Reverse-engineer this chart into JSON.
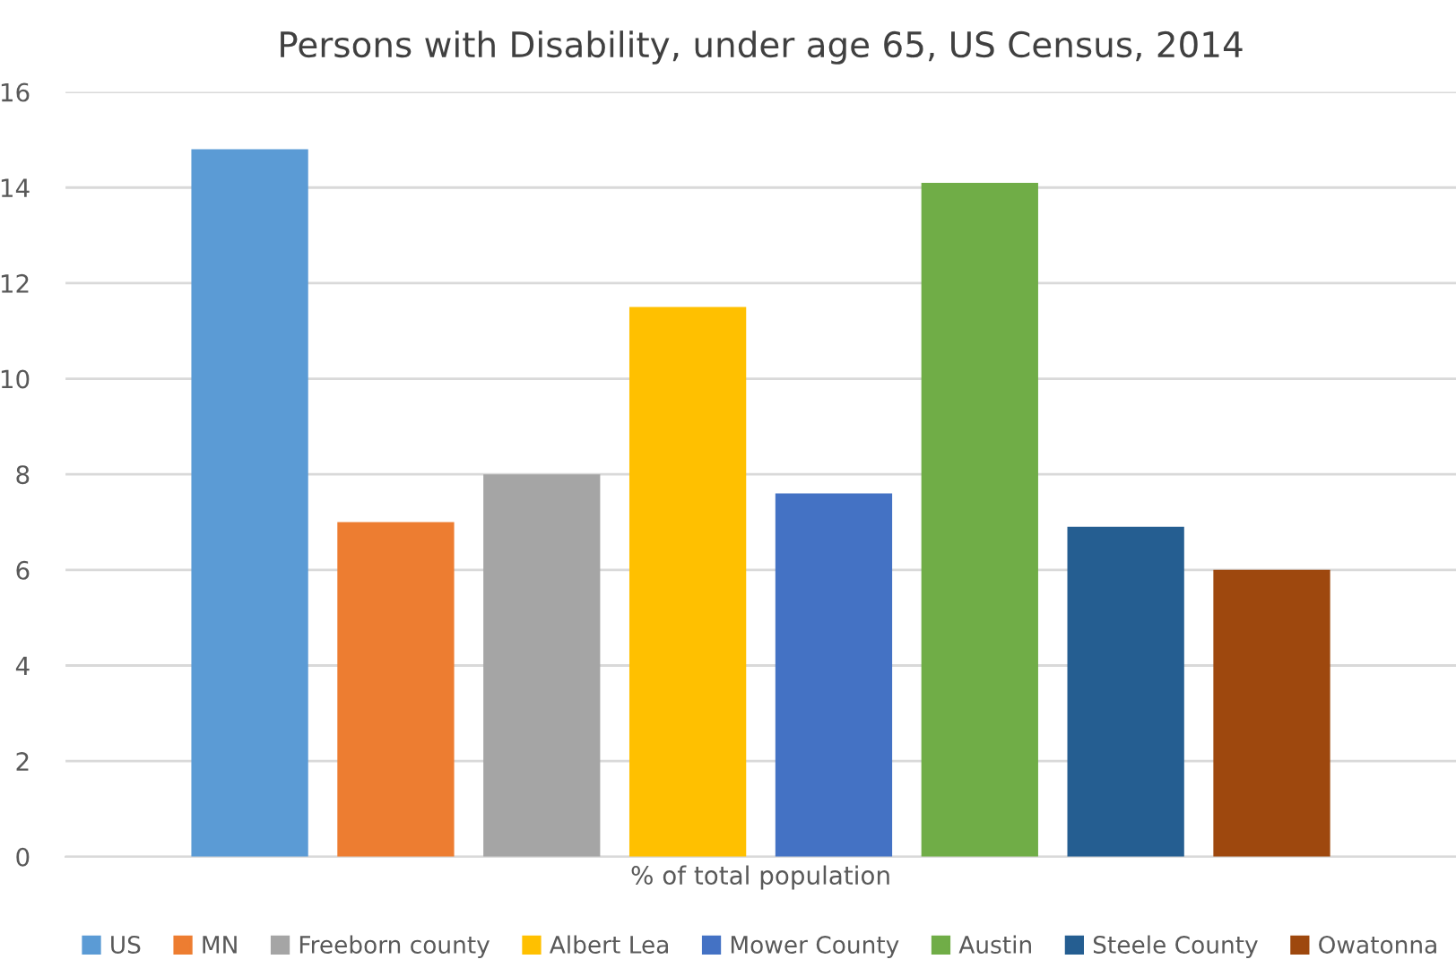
{
  "chart_data": {
    "type": "bar",
    "title": "Persons with Disability, under age 65, US Census, 2014",
    "categories": [
      "% of total population"
    ],
    "series": [
      {
        "name": "US",
        "color": "#5b9bd5",
        "values": [
          14.8
        ]
      },
      {
        "name": "MN",
        "color": "#ed7d31",
        "values": [
          7.0
        ]
      },
      {
        "name": "Freeborn county",
        "color": "#a5a5a5",
        "values": [
          8.0
        ]
      },
      {
        "name": "Albert Lea",
        "color": "#ffc000",
        "values": [
          11.5
        ]
      },
      {
        "name": "Mower County",
        "color": "#4472c4",
        "values": [
          7.6
        ]
      },
      {
        "name": "Austin",
        "color": "#70ad47",
        "values": [
          14.1
        ]
      },
      {
        "name": "Steele County",
        "color": "#255e91",
        "values": [
          6.9
        ]
      },
      {
        "name": "Owatonna",
        "color": "#9e480e",
        "values": [
          6.0
        ]
      }
    ],
    "ylim": [
      0,
      16
    ],
    "yticks": [
      0,
      2,
      4,
      6,
      8,
      10,
      12,
      14,
      16
    ],
    "grid": "y",
    "legend": "bottom"
  }
}
